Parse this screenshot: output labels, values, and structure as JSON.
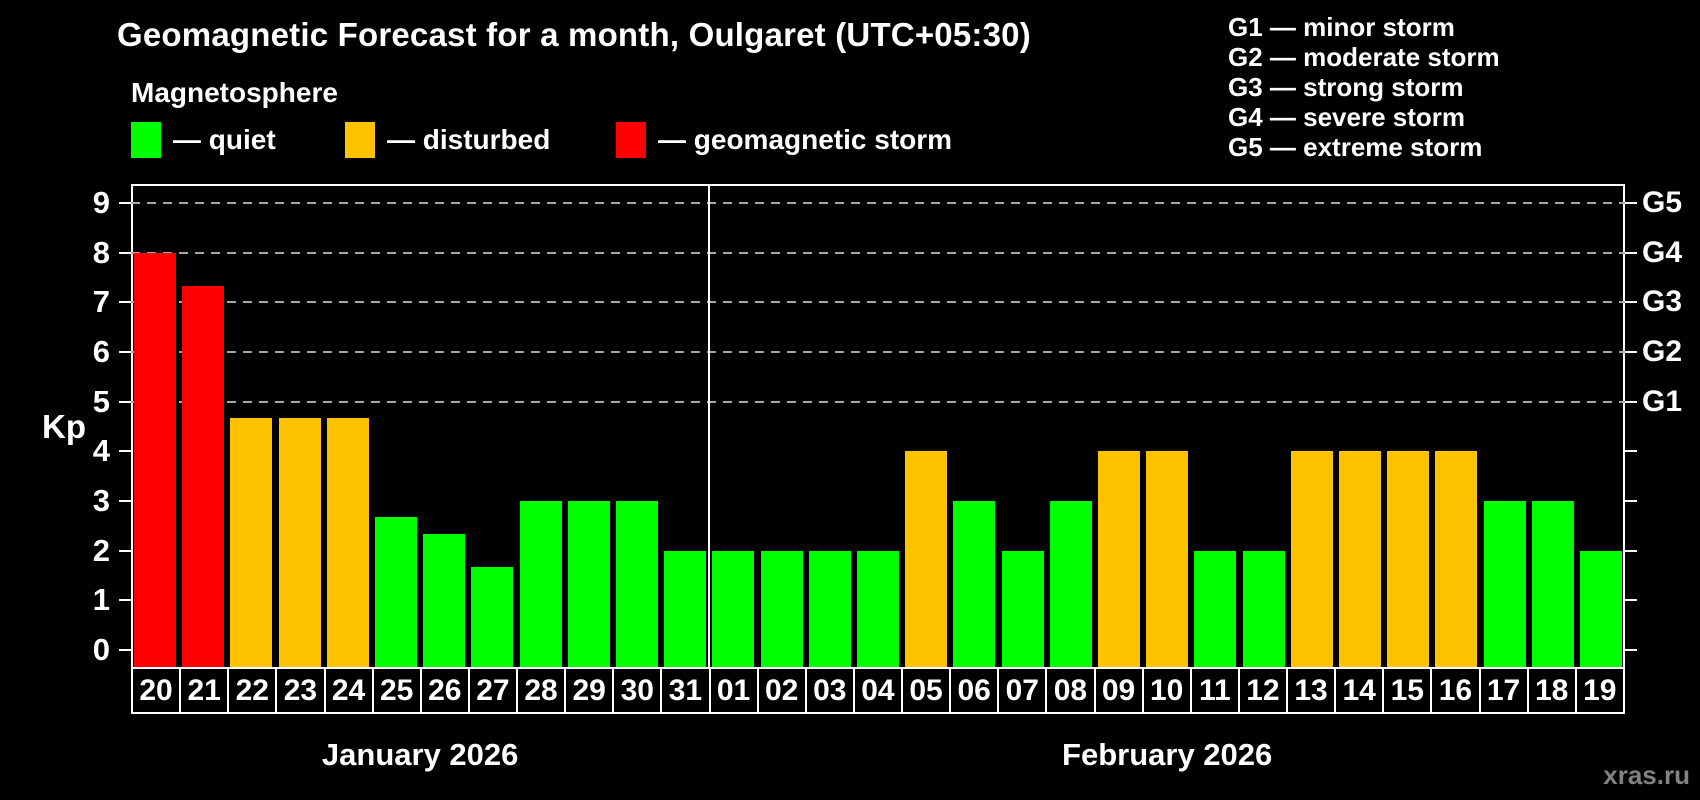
{
  "header": {
    "title": "Geomagnetic Forecast for a month, Oulgaret (UTC+05:30)",
    "subtitle": "Magnetosphere"
  },
  "legend": {
    "items": [
      {
        "key": "quiet",
        "label": "— quiet",
        "color": "#00ff00"
      },
      {
        "key": "disturbed",
        "label": "— disturbed",
        "color": "#ffc200"
      },
      {
        "key": "storm",
        "label": "— geomagnetic storm",
        "color": "#ff0000"
      }
    ]
  },
  "g_scale_legend": {
    "lines": [
      "G1 — minor storm",
      "G2 — moderate storm",
      "G3 — strong storm",
      "G4 — severe storm",
      "G5 — extreme storm"
    ]
  },
  "watermark": "xras.ru",
  "chart_data": {
    "type": "bar",
    "title": "Geomagnetic Forecast for a month, Oulgaret (UTC+05:30)",
    "ylabel": "Kp",
    "ylim": [
      -0.4,
      9.4
    ],
    "y_ticks": [
      0,
      1,
      2,
      3,
      4,
      5,
      6,
      7,
      8,
      9
    ],
    "gridlines_at_kp": [
      5,
      6,
      7,
      8,
      9
    ],
    "grid": "dashed horizontal lines at storm levels only",
    "right_axis": [
      {
        "label": "G1",
        "kp": 5
      },
      {
        "label": "G2",
        "kp": 6
      },
      {
        "label": "G3",
        "kp": 7
      },
      {
        "label": "G4",
        "kp": 8
      },
      {
        "label": "G5",
        "kp": 9
      }
    ],
    "level_colors": {
      "quiet": "#00ff00",
      "disturbed": "#ffc200",
      "storm": "#ff0000"
    },
    "months": [
      {
        "label": "January 2026",
        "days": 12
      },
      {
        "label": "February 2026",
        "days": 19
      }
    ],
    "bars": [
      {
        "day": "20",
        "value": 8.0,
        "level": "storm"
      },
      {
        "day": "21",
        "value": 7.33,
        "level": "storm"
      },
      {
        "day": "22",
        "value": 4.67,
        "level": "disturbed"
      },
      {
        "day": "23",
        "value": 4.67,
        "level": "disturbed"
      },
      {
        "day": "24",
        "value": 4.67,
        "level": "disturbed"
      },
      {
        "day": "25",
        "value": 2.67,
        "level": "quiet"
      },
      {
        "day": "26",
        "value": 2.33,
        "level": "quiet"
      },
      {
        "day": "27",
        "value": 1.67,
        "level": "quiet"
      },
      {
        "day": "28",
        "value": 3.0,
        "level": "quiet"
      },
      {
        "day": "29",
        "value": 3.0,
        "level": "quiet"
      },
      {
        "day": "30",
        "value": 3.0,
        "level": "quiet"
      },
      {
        "day": "31",
        "value": 2.0,
        "level": "quiet"
      },
      {
        "day": "01",
        "value": 2.0,
        "level": "quiet"
      },
      {
        "day": "02",
        "value": 2.0,
        "level": "quiet"
      },
      {
        "day": "03",
        "value": 2.0,
        "level": "quiet"
      },
      {
        "day": "04",
        "value": 2.0,
        "level": "quiet"
      },
      {
        "day": "05",
        "value": 4.0,
        "level": "disturbed"
      },
      {
        "day": "06",
        "value": 3.0,
        "level": "quiet"
      },
      {
        "day": "07",
        "value": 2.0,
        "level": "quiet"
      },
      {
        "day": "08",
        "value": 3.0,
        "level": "quiet"
      },
      {
        "day": "09",
        "value": 4.0,
        "level": "disturbed"
      },
      {
        "day": "10",
        "value": 4.0,
        "level": "disturbed"
      },
      {
        "day": "11",
        "value": 2.0,
        "level": "quiet"
      },
      {
        "day": "12",
        "value": 2.0,
        "level": "quiet"
      },
      {
        "day": "13",
        "value": 4.0,
        "level": "disturbed"
      },
      {
        "day": "14",
        "value": 4.0,
        "level": "disturbed"
      },
      {
        "day": "15",
        "value": 4.0,
        "level": "disturbed"
      },
      {
        "day": "16",
        "value": 4.0,
        "level": "disturbed"
      },
      {
        "day": "17",
        "value": 3.0,
        "level": "quiet"
      },
      {
        "day": "18",
        "value": 3.0,
        "level": "quiet"
      },
      {
        "day": "19",
        "value": 2.0,
        "level": "quiet"
      }
    ]
  }
}
